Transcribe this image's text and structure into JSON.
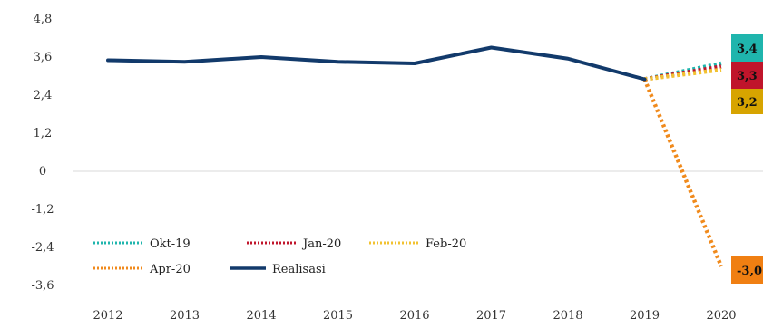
{
  "chart_data": {
    "type": "line",
    "title": "",
    "xlabel": "",
    "ylabel": "",
    "ylim": [
      -3.6,
      4.8
    ],
    "yticks": [
      "4,8",
      "3,6",
      "2,4",
      "1,2",
      "0",
      "-1,2",
      "-2,4",
      "-3,6"
    ],
    "ytick_values": [
      4.8,
      3.6,
      2.4,
      1.2,
      0,
      -1.2,
      -2.4,
      -3.6
    ],
    "categories": [
      "2012",
      "2013",
      "2014",
      "2015",
      "2016",
      "2017",
      "2018",
      "2019",
      "2020"
    ],
    "grid": "zero-line only",
    "legend_position": "bottom-left",
    "series": [
      {
        "name": "Okt-19",
        "style": "dotted",
        "color": "#1fb5ad",
        "points": [
          [
            "2019",
            2.9
          ],
          [
            "2020",
            3.4
          ]
        ]
      },
      {
        "name": "Jan-20",
        "style": "dotted",
        "color": "#c0152b",
        "points": [
          [
            "2019",
            2.9
          ],
          [
            "2020",
            3.3
          ]
        ]
      },
      {
        "name": "Feb-20",
        "style": "dotted",
        "color": "#f2c230",
        "points": [
          [
            "2019",
            2.9
          ],
          [
            "2020",
            3.2
          ]
        ]
      },
      {
        "name": "Apr-20",
        "style": "dotted",
        "color": "#f08a1c",
        "points": [
          [
            "2019",
            2.9
          ],
          [
            "2020",
            -3.0
          ]
        ]
      },
      {
        "name": "Realisasi",
        "style": "solid",
        "color": "#123a6b",
        "points": [
          [
            "2012",
            3.5
          ],
          [
            "2013",
            3.45
          ],
          [
            "2014",
            3.6
          ],
          [
            "2015",
            3.45
          ],
          [
            "2016",
            3.4
          ],
          [
            "2017",
            3.9
          ],
          [
            "2018",
            3.55
          ],
          [
            "2019",
            2.9
          ]
        ]
      }
    ],
    "end_labels": [
      {
        "text": "3,4",
        "bg": "#1fb5ad"
      },
      {
        "text": "3,3",
        "bg": "#c0152b"
      },
      {
        "text": "3,2",
        "bg": "#d7a400"
      },
      {
        "text": "-3,0",
        "bg": "#f07f12"
      }
    ]
  }
}
